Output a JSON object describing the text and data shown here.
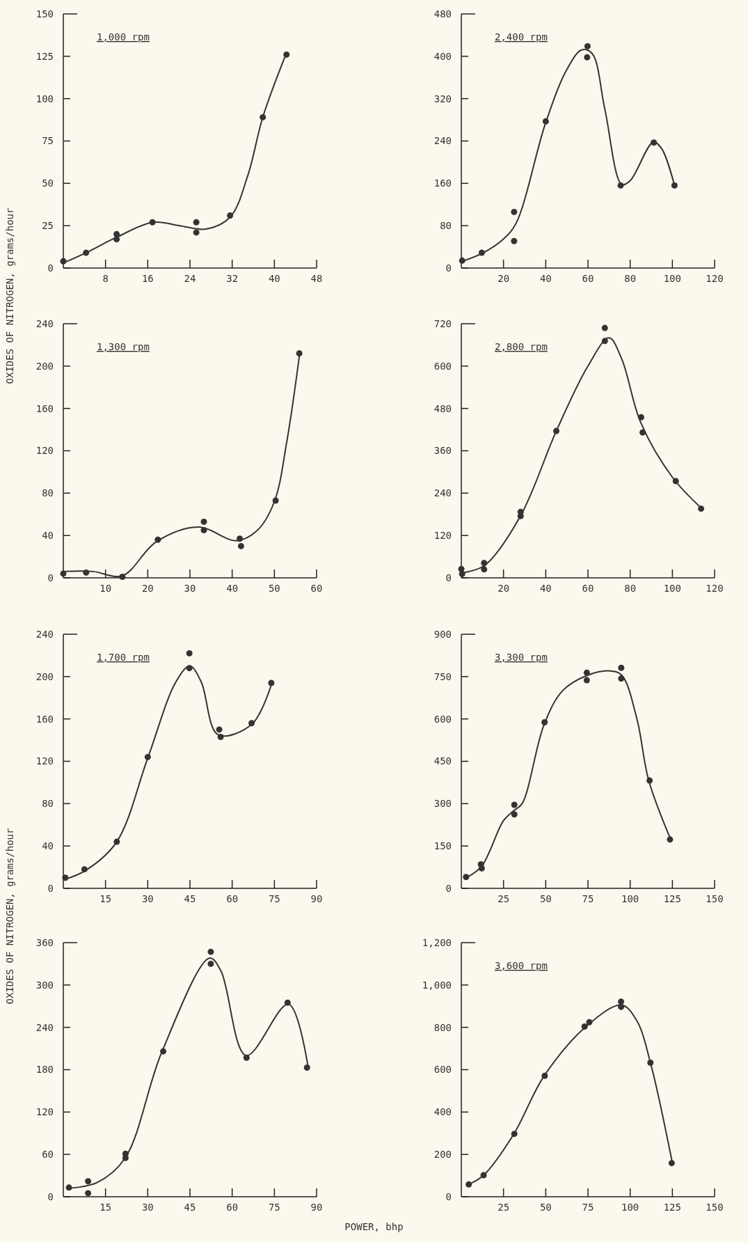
{
  "chart_data": [
    {
      "type": "scatter",
      "title": "1,000 rpm",
      "ylabel": "OXIDES OF NITROGEN, grams/hour",
      "xlim": [
        0,
        48
      ],
      "xticks": [
        8,
        16,
        24,
        32,
        40,
        48
      ],
      "ylim": [
        0,
        150
      ],
      "yticks": [
        0,
        25,
        50,
        75,
        100,
        125,
        150
      ],
      "series": [
        {
          "color": "#333333",
          "x": [
            0,
            4.3,
            10.1,
            10.1,
            16.9,
            25.2,
            25.2,
            31.6,
            37.8,
            42.3
          ],
          "values": [
            4,
            9,
            20,
            17,
            27,
            27,
            21,
            31,
            89,
            126
          ]
        },
        {
          "type": "line",
          "color": "#333333",
          "x": [
            0,
            4.3,
            10,
            17,
            22,
            27,
            31.6,
            35,
            37.8,
            42.3
          ],
          "values": [
            3,
            9,
            18,
            27,
            25,
            23,
            30,
            55,
            89,
            127
          ]
        }
      ]
    },
    {
      "type": "scatter",
      "title": "2,400 rpm",
      "xlim": [
        0,
        120
      ],
      "xticks": [
        20,
        40,
        60,
        80,
        100,
        120
      ],
      "ylim": [
        0,
        480
      ],
      "yticks": [
        0,
        80,
        160,
        240,
        320,
        400,
        480
      ],
      "series": [
        {
          "color": "#333333",
          "x": [
            0.4,
            9.7,
            25,
            25,
            40,
            59.8,
            59.6,
            75.5,
            91.2,
            101
          ],
          "values": [
            14,
            29,
            106,
            51,
            277,
            419,
            398,
            156,
            237,
            156
          ]
        },
        {
          "type": "line",
          "color": "#333333",
          "x": [
            0,
            10,
            20,
            26,
            40,
            50,
            57,
            62,
            68,
            76,
            80,
            91,
            95,
            101
          ],
          "values": [
            12,
            28,
            55,
            85,
            275,
            375,
            412,
            405,
            300,
            158,
            165,
            238,
            225,
            156
          ]
        }
      ]
    },
    {
      "type": "scatter",
      "title": "1,300 rpm",
      "xlim": [
        0,
        60
      ],
      "xticks": [
        10,
        20,
        30,
        40,
        50,
        60
      ],
      "ylim": [
        0,
        240
      ],
      "yticks": [
        0,
        40,
        80,
        120,
        160,
        200,
        240
      ],
      "series": [
        {
          "color": "#333333",
          "x": [
            0,
            5.4,
            14,
            22.4,
            33.3,
            33.3,
            41.8,
            42.1,
            50.3,
            55.9
          ],
          "values": [
            4,
            5,
            1,
            36,
            53,
            45,
            37,
            30,
            73,
            212
          ]
        },
        {
          "type": "line",
          "color": "#333333",
          "x": [
            0,
            7,
            14,
            22,
            32,
            41,
            46,
            50,
            53,
            56
          ],
          "values": [
            6,
            6,
            2,
            34,
            48,
            35,
            45,
            72,
            130,
            212
          ]
        }
      ]
    },
    {
      "type": "scatter",
      "title": "2,800 rpm",
      "xlim": [
        0,
        120
      ],
      "xticks": [
        20,
        40,
        60,
        80,
        100,
        120
      ],
      "ylim": [
        0,
        720
      ],
      "yticks": [
        0,
        120,
        240,
        360,
        480,
        600,
        720
      ],
      "series": [
        {
          "color": "#333333",
          "x": [
            0,
            0.4,
            10.8,
            10.8,
            28.1,
            28.1,
            45,
            68,
            68,
            85.2,
            85.9,
            101.6,
            113.6
          ],
          "values": [
            25,
            11,
            42,
            24,
            187,
            175,
            416,
            708,
            671,
            455,
            412,
            274,
            196
          ]
        },
        {
          "type": "line",
          "color": "#333333",
          "x": [
            1,
            11,
            28,
            45,
            60,
            70,
            76,
            85,
            100,
            114
          ],
          "values": [
            15,
            35,
            175,
            416,
            600,
            680,
            620,
            440,
            285,
            196
          ]
        }
      ]
    },
    {
      "type": "scatter",
      "title": "1,700 rpm",
      "ylabel": "OXIDES OF NITROGEN, grams/hour",
      "xlim": [
        0,
        90
      ],
      "xticks": [
        15,
        30,
        45,
        60,
        75,
        90
      ],
      "ylim": [
        0,
        240
      ],
      "yticks": [
        0,
        40,
        80,
        120,
        160,
        200,
        240
      ],
      "series": [
        {
          "color": "#333333",
          "x": [
            0.7,
            7.5,
            19,
            30,
            44.8,
            44.8,
            55.4,
            55.9,
            66.9,
            73.9
          ],
          "values": [
            10,
            18,
            44,
            124,
            222,
            208,
            150,
            143,
            156,
            194
          ]
        },
        {
          "type": "line",
          "color": "#333333",
          "x": [
            0,
            8,
            19,
            30,
            40,
            45,
            49,
            55,
            67,
            74
          ],
          "values": [
            8,
            17,
            44,
            123,
            195,
            210,
            195,
            145,
            155,
            193
          ]
        }
      ]
    },
    {
      "type": "scatter",
      "title": "3,300 rpm",
      "xlim": [
        0,
        150
      ],
      "xticks": [
        25,
        50,
        75,
        100,
        125,
        150
      ],
      "ylim": [
        0,
        900
      ],
      "yticks": [
        0,
        150,
        300,
        450,
        600,
        750,
        900
      ],
      "series": [
        {
          "color": "#333333",
          "x": [
            2.8,
            11.6,
            12.1,
            31.4,
            31.4,
            49.3,
            74.3,
            74.3,
            94.7,
            94.7,
            111.5,
            123.6
          ],
          "values": [
            40,
            85,
            71,
            296,
            262,
            588,
            764,
            737,
            781,
            743,
            382,
            173
          ]
        },
        {
          "type": "line",
          "color": "#333333",
          "x": [
            3,
            12,
            25,
            31,
            36,
            49,
            60,
            75,
            88,
            95,
            104,
            111,
            124
          ],
          "values": [
            38,
            78,
            240,
            275,
            300,
            580,
            700,
            755,
            770,
            755,
            600,
            382,
            173
          ]
        }
      ]
    },
    {
      "type": "scatter",
      "xlabel": "POWER, bhp",
      "xlim": [
        0,
        90
      ],
      "xticks": [
        15,
        30,
        45,
        60,
        75,
        90
      ],
      "ylim": [
        0,
        360
      ],
      "yticks": [
        0,
        60,
        120,
        180,
        240,
        300,
        360
      ],
      "series": [
        {
          "color": "#333333",
          "x": [
            2,
            8.8,
            8.8,
            22.1,
            22.1,
            35.5,
            52.4,
            52.4,
            65.1,
            79.7,
            86.6
          ],
          "values": [
            13,
            22,
            5,
            61,
            55,
            206,
            347,
            330,
            197,
            275,
            183
          ]
        },
        {
          "type": "line",
          "color": "#333333",
          "x": [
            2,
            12,
            22,
            35,
            52,
            56,
            65,
            80,
            87
          ],
          "values": [
            12,
            20,
            55,
            205,
            338,
            320,
            200,
            273,
            183
          ]
        }
      ]
    },
    {
      "type": "scatter",
      "title": "3,600 rpm",
      "xlim": [
        0,
        150
      ],
      "xticks": [
        25,
        50,
        75,
        100,
        125,
        150
      ],
      "ylim": [
        0,
        1200
      ],
      "yticks": [
        0,
        200,
        400,
        600,
        800,
        {
          "value": 1000,
          "label": "1,000"
        },
        {
          "value": 1200,
          "label": "1,200"
        }
      ],
      "series": [
        {
          "color": "#333333",
          "x": [
            4.4,
            13.2,
            31.4,
            49.4,
            73,
            75.8,
            94.6,
            94.6,
            112,
            124.6
          ],
          "values": [
            58,
            102,
            297,
            571,
            804,
            824,
            921,
            897,
            633,
            159
          ]
        },
        {
          "type": "line",
          "color": "#333333",
          "x": [
            4,
            13,
            31,
            49,
            74,
            95,
            104,
            112,
            125
          ],
          "values": [
            57,
            100,
            295,
            570,
            805,
            905,
            830,
            633,
            159
          ]
        }
      ]
    }
  ]
}
